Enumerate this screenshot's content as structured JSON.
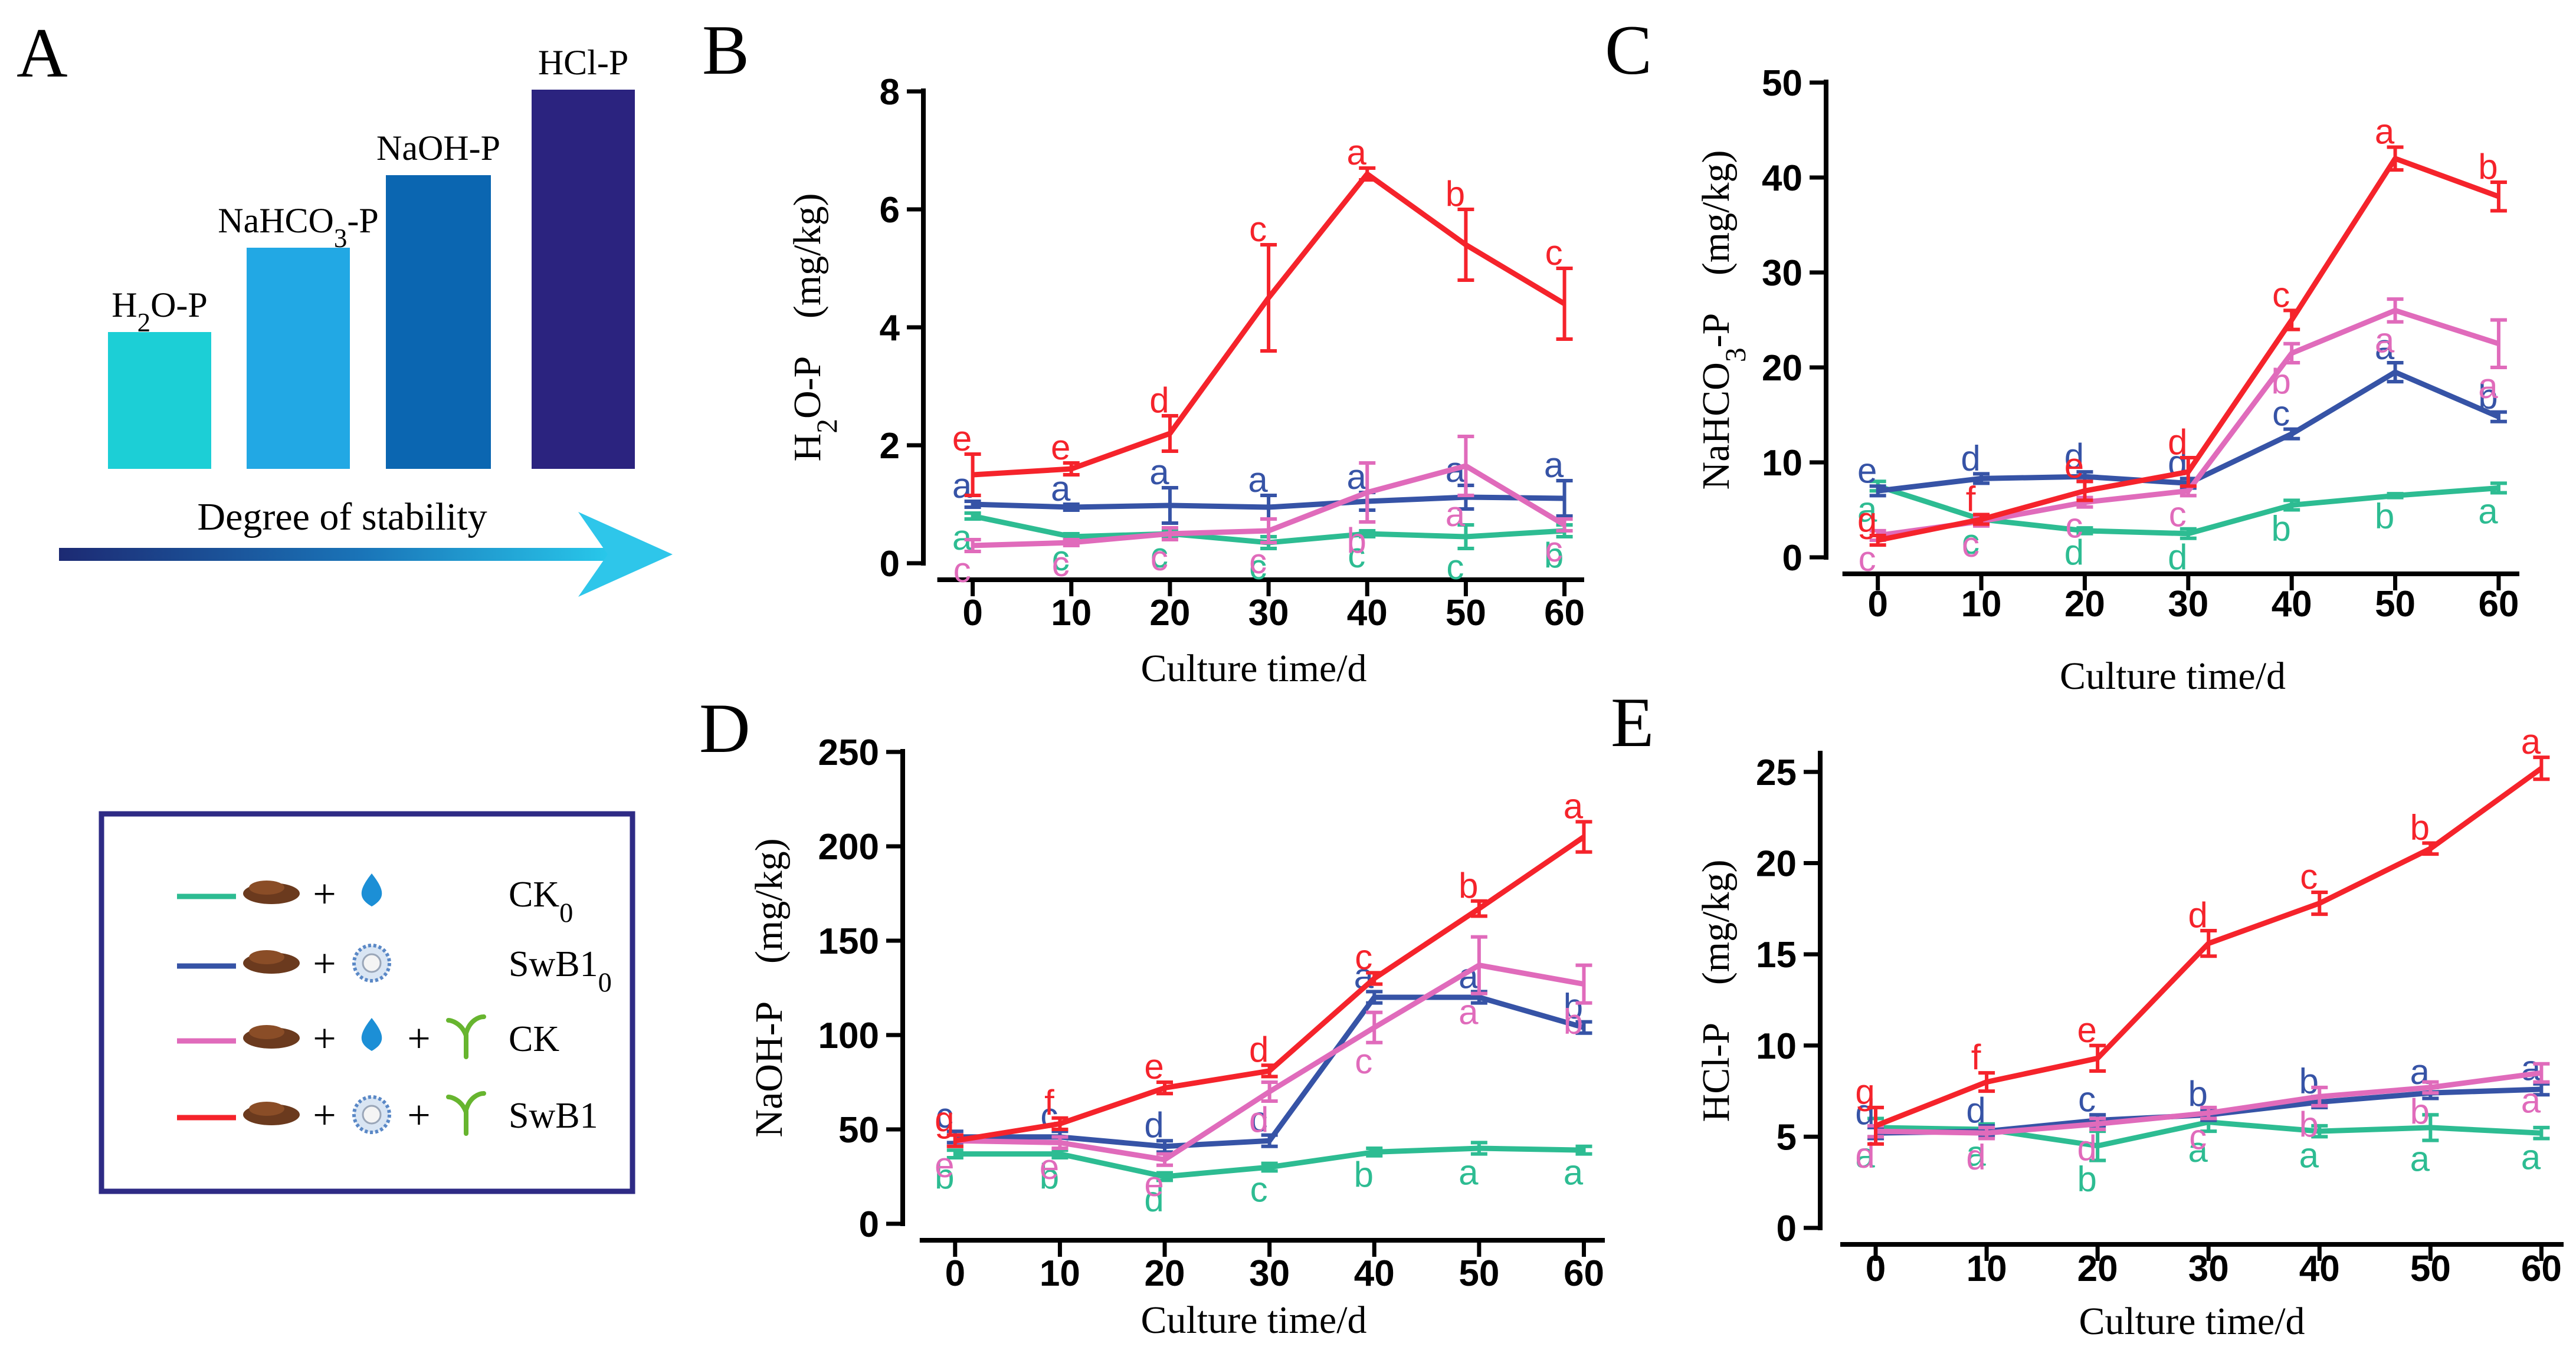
{
  "panel_a": {
    "label": "A",
    "bars": [
      {
        "name": "H₂O-P",
        "label": "H2O-P",
        "color": "#1ccfd6",
        "level": 1
      },
      {
        "name": "NaHCO₃-P",
        "label": "NaHCO3-P",
        "color": "#22a8e4",
        "level": 2
      },
      {
        "name": "NaOH-P",
        "label": "NaOH-P",
        "color": "#0b66b1",
        "level": 3
      },
      {
        "name": "HCl-P",
        "label": "HCl-P",
        "color": "#2b237f",
        "level": 4
      }
    ],
    "arrow_label": "Degree of stability"
  },
  "legend": {
    "items": [
      {
        "name": "CK₀",
        "color": "#2dbc92",
        "components": [
          "soil",
          "water"
        ]
      },
      {
        "name": "SwB1₀",
        "color": "#3653a6",
        "components": [
          "soil",
          "bacteria"
        ]
      },
      {
        "name": "CK",
        "color": "#e06bbb",
        "components": [
          "soil",
          "water",
          "seedling"
        ]
      },
      {
        "name": "SwB1",
        "color": "#f5232b",
        "components": [
          "soil",
          "bacteria",
          "seedling"
        ]
      }
    ]
  },
  "colors": {
    "CK0": "#2dbc92",
    "SwB10": "#3653a6",
    "CK": "#e06bbb",
    "SwB1": "#f5232b"
  },
  "chart_data": [
    {
      "panel": "B",
      "type": "line",
      "title": "",
      "xlabel": "Culture time/d",
      "ylabel": "H2O-P　(mg/kg)",
      "x": [
        0,
        10,
        20,
        30,
        40,
        50,
        60
      ],
      "xlim": [
        -5,
        62
      ],
      "ylim": [
        0,
        8
      ],
      "yticks": [
        0,
        2,
        4,
        6,
        8
      ],
      "series": [
        {
          "name": "CK0",
          "values": [
            0.8,
            0.45,
            0.5,
            0.35,
            0.5,
            0.45,
            0.55
          ],
          "errors": [
            0.05,
            0.05,
            0.05,
            0.1,
            0.05,
            0.2,
            0.1
          ],
          "letters": [
            "a",
            "c",
            "c",
            "c",
            "c",
            "c",
            "b"
          ]
        },
        {
          "name": "SwB10",
          "values": [
            1.0,
            0.95,
            0.98,
            0.95,
            1.05,
            1.12,
            1.1
          ],
          "errors": [
            0.05,
            0.05,
            0.3,
            0.2,
            0.15,
            0.2,
            0.3
          ],
          "letters": [
            "a",
            "a",
            "a",
            "a",
            "a",
            "a",
            "a"
          ]
        },
        {
          "name": "CK",
          "values": [
            0.3,
            0.35,
            0.5,
            0.55,
            1.2,
            1.65,
            0.65
          ],
          "errors": [
            0.1,
            0.05,
            0.1,
            0.2,
            0.5,
            0.5,
            0.1
          ],
          "letters": [
            "c",
            "c",
            "c",
            "c",
            "b",
            "a",
            "c"
          ]
        },
        {
          "name": "SwB1",
          "values": [
            1.5,
            1.6,
            2.2,
            4.5,
            6.6,
            5.4,
            4.4
          ],
          "errors": [
            0.35,
            0.1,
            0.3,
            0.9,
            0.1,
            0.6,
            0.6
          ],
          "letters": [
            "e",
            "e",
            "d",
            "c",
            "a",
            "b",
            "c"
          ]
        }
      ]
    },
    {
      "panel": "C",
      "type": "line",
      "title": "",
      "xlabel": "Culture time/d",
      "ylabel": "NaHCO3-P　(mg/kg)",
      "x": [
        0,
        10,
        20,
        30,
        40,
        50,
        60
      ],
      "xlim": [
        -5,
        62
      ],
      "ylim": [
        0,
        50
      ],
      "yticks": [
        0,
        10,
        20,
        30,
        40,
        50
      ],
      "series": [
        {
          "name": "CK0",
          "values": [
            7.5,
            4.0,
            2.8,
            2.5,
            5.5,
            6.5,
            7.3
          ],
          "errors": [
            0.5,
            0.4,
            0.3,
            0.5,
            0.5,
            0.2,
            0.5
          ],
          "letters": [
            "a",
            "c",
            "d",
            "d",
            "b",
            "b",
            "a"
          ]
        },
        {
          "name": "SwB10",
          "values": [
            7.0,
            8.3,
            8.5,
            7.8,
            13.0,
            19.5,
            14.8
          ],
          "errors": [
            0.5,
            0.5,
            0.5,
            0.5,
            0.5,
            1.0,
            0.5
          ],
          "letters": [
            "e",
            "d",
            "d",
            "d",
            "c",
            "a",
            "b"
          ]
        },
        {
          "name": "CK",
          "values": [
            2.3,
            3.8,
            5.8,
            7.0,
            21.5,
            26.0,
            22.5
          ],
          "errors": [
            0.5,
            0.5,
            0.5,
            0.5,
            1.0,
            1.2,
            2.5
          ],
          "letters": [
            "c",
            "c",
            "c",
            "c",
            "b",
            "a",
            "a"
          ]
        },
        {
          "name": "SwB1",
          "values": [
            1.8,
            4.0,
            7.0,
            9.0,
            25.0,
            42.0,
            38.0
          ],
          "errors": [
            0.5,
            0.5,
            1.0,
            1.5,
            1.0,
            1.2,
            1.5
          ],
          "letters": [
            "g",
            "f",
            "e",
            "d",
            "c",
            "a",
            "b"
          ]
        }
      ]
    },
    {
      "panel": "D",
      "type": "line",
      "title": "",
      "xlabel": "Culture time/d",
      "ylabel": "NaOH-P　(mg/kg)",
      "x": [
        0,
        10,
        20,
        30,
        40,
        50,
        60
      ],
      "xlim": [
        -5,
        62
      ],
      "ylim": [
        0,
        250
      ],
      "yticks": [
        0,
        50,
        100,
        150,
        200,
        250
      ],
      "series": [
        {
          "name": "CK0",
          "values": [
            37,
            37,
            25,
            30,
            38,
            40,
            39
          ],
          "errors": [
            2,
            2,
            2,
            2,
            2,
            3,
            2
          ],
          "letters": [
            "b",
            "b",
            "d",
            "c",
            "b",
            "a",
            "a"
          ]
        },
        {
          "name": "SwB10",
          "values": [
            46,
            46,
            41,
            44,
            120,
            120,
            104
          ],
          "errors": [
            3,
            3,
            3,
            3,
            3,
            3,
            3
          ],
          "letters": [
            "c",
            "c",
            "d",
            "c",
            "a",
            "a",
            "b"
          ]
        },
        {
          "name": "CK",
          "values": [
            44,
            43,
            34,
            70,
            104,
            137,
            127
          ],
          "errors": [
            3,
            3,
            3,
            5,
            8,
            15,
            10
          ],
          "letters": [
            "e",
            "e",
            "e",
            "d",
            "c",
            "a",
            "b"
          ]
        },
        {
          "name": "SwB1",
          "values": [
            44,
            53,
            72,
            81,
            130,
            167,
            205
          ],
          "errors": [
            3,
            3,
            3,
            3,
            3,
            4,
            8
          ],
          "letters": [
            "g",
            "f",
            "e",
            "d",
            "c",
            "b",
            "a"
          ]
        }
      ]
    },
    {
      "panel": "E",
      "type": "line",
      "title": "",
      "xlabel": "Culture time/d",
      "ylabel": "HCl-P　(mg/kg)",
      "x": [
        0,
        10,
        20,
        30,
        40,
        50,
        60
      ],
      "xlim": [
        -5,
        62
      ],
      "ylim": [
        0,
        26
      ],
      "yticks": [
        0,
        5,
        10,
        15,
        20,
        25
      ],
      "series": [
        {
          "name": "CK0",
          "values": [
            5.5,
            5.4,
            4.5,
            5.8,
            5.3,
            5.5,
            5.2
          ],
          "errors": [
            0.5,
            0.3,
            0.8,
            0.5,
            0.3,
            0.7,
            0.3
          ],
          "letters": [
            "a",
            "a",
            "b",
            "a",
            "a",
            "a",
            "a"
          ]
        },
        {
          "name": "SwB10",
          "values": [
            5.2,
            5.3,
            5.9,
            6.2,
            6.9,
            7.4,
            7.6
          ],
          "errors": [
            0.3,
            0.3,
            0.3,
            0.3,
            0.3,
            0.3,
            0.3
          ],
          "letters": [
            "d",
            "d",
            "c",
            "b",
            "b",
            "a",
            "a"
          ]
        },
        {
          "name": "CK",
          "values": [
            5.3,
            5.2,
            5.7,
            6.3,
            7.2,
            7.7,
            8.5
          ],
          "errors": [
            0.3,
            0.3,
            0.3,
            0.3,
            0.5,
            0.3,
            0.5
          ],
          "letters": [
            "d",
            "d",
            "d",
            "c",
            "b",
            "b",
            "a"
          ]
        },
        {
          "name": "SwB1",
          "values": [
            5.6,
            8.0,
            9.3,
            15.6,
            17.8,
            20.8,
            25.2
          ],
          "errors": [
            1.0,
            0.5,
            0.7,
            0.7,
            0.6,
            0.3,
            0.6
          ],
          "letters": [
            "g",
            "f",
            "e",
            "d",
            "c",
            "b",
            "a"
          ]
        }
      ]
    }
  ]
}
